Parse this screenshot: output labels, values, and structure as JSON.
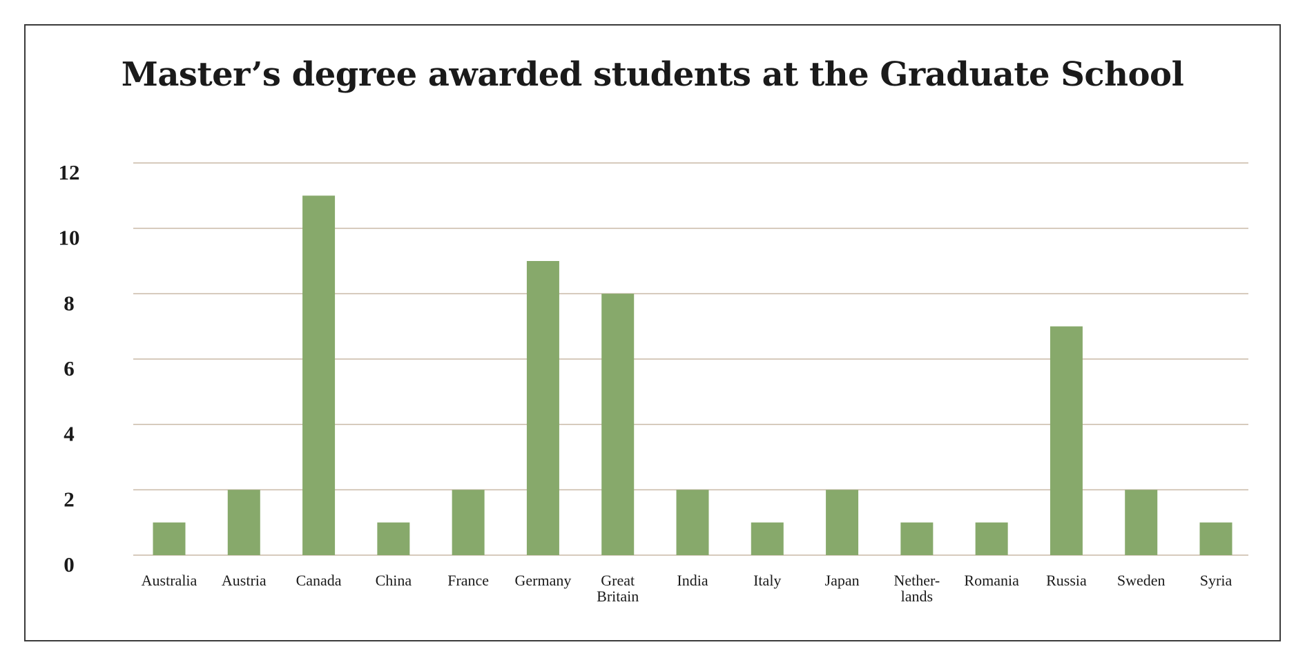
{
  "chart_data": {
    "type": "bar",
    "title": "Master’s degree awarded students at the Graduate School",
    "categories": [
      [
        "Australia"
      ],
      [
        "Austria"
      ],
      [
        "Canada"
      ],
      [
        "China"
      ],
      [
        "France"
      ],
      [
        "Germany"
      ],
      [
        "Great",
        "Britain"
      ],
      [
        "India"
      ],
      [
        "Italy"
      ],
      [
        "Japan"
      ],
      [
        "Nether-",
        "lands"
      ],
      [
        "Romania"
      ],
      [
        "Russia"
      ],
      [
        "Sweden"
      ],
      [
        "Syria"
      ]
    ],
    "values": [
      1,
      2,
      11,
      1,
      2,
      9,
      8,
      2,
      1,
      2,
      1,
      1,
      7,
      2,
      1
    ],
    "ylim": [
      0,
      12
    ],
    "yticks": [
      0,
      2,
      4,
      6,
      8,
      10,
      12
    ],
    "grid": true,
    "legend": "none",
    "colors": {
      "bar": "#87a96b",
      "grid": "#c9b9a6",
      "text": "#1a1a1a",
      "border": "#3a3a3a"
    }
  }
}
